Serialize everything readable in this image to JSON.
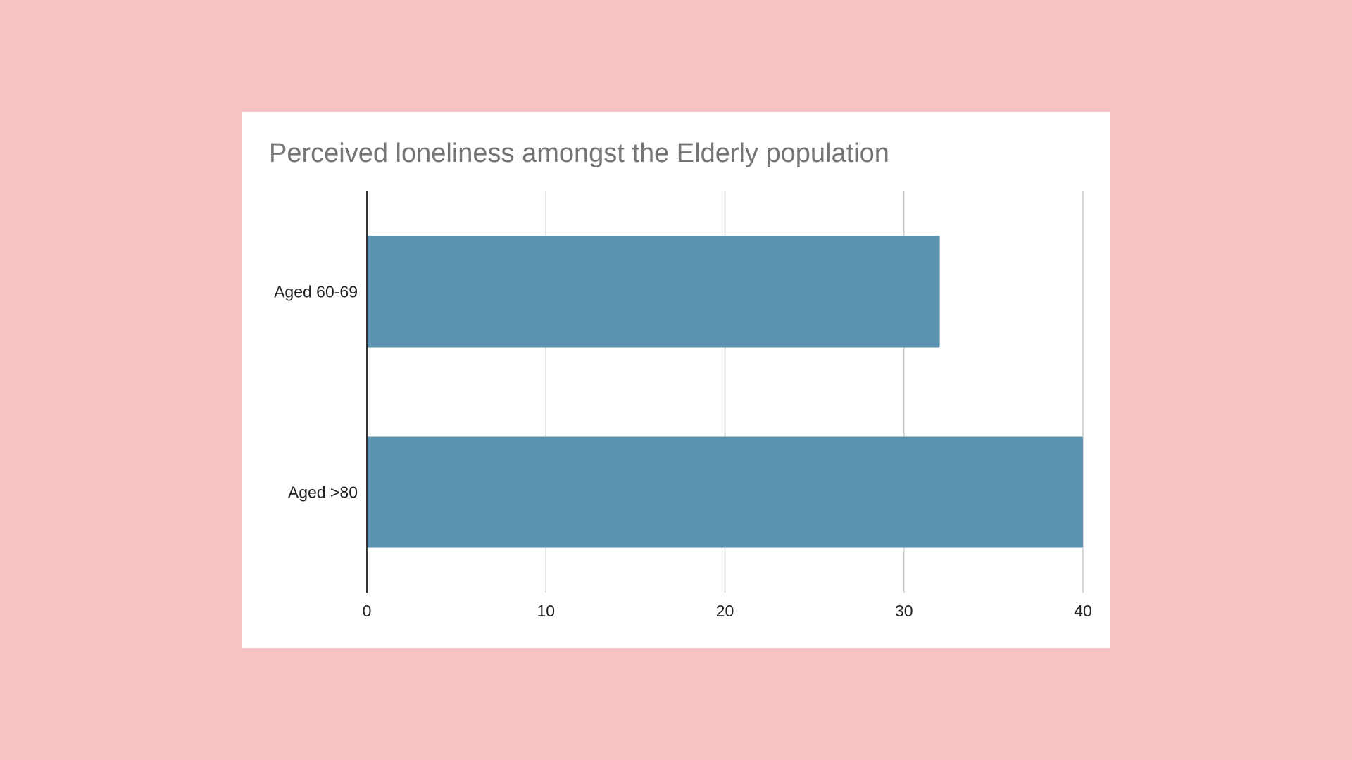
{
  "colors": {
    "background": "#f9c3c4",
    "card": "#ffffff",
    "bar": "#5a92af",
    "title": "#757575",
    "gridline": "#cccccc",
    "axis": "#333333"
  },
  "chart_data": {
    "type": "bar",
    "orientation": "horizontal",
    "title": "Perceived loneliness amongst the Elderly population",
    "categories": [
      "Aged 60-69",
      "Aged >80"
    ],
    "values": [
      32,
      40
    ],
    "xlim": [
      0,
      40
    ],
    "x_ticks": [
      0,
      10,
      20,
      30,
      40
    ],
    "xlabel": "",
    "ylabel": "",
    "grid": true,
    "legend": "none"
  }
}
